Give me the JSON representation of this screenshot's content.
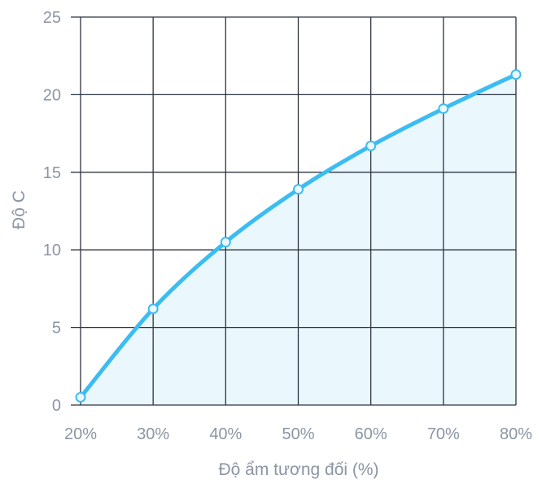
{
  "chart_data": {
    "type": "line",
    "title": "",
    "xlabel": "Độ ẩm tương đối (%)",
    "ylabel": "Độ C",
    "x": [
      20,
      30,
      40,
      50,
      60,
      70,
      80
    ],
    "x_tick_labels": [
      "20%",
      "30%",
      "40%",
      "50%",
      "60%",
      "70%",
      "80%"
    ],
    "xlim": [
      20,
      80
    ],
    "y_ticks": [
      0,
      5,
      10,
      15,
      20,
      25
    ],
    "y_tick_labels": [
      "0",
      "5",
      "10",
      "15",
      "20",
      "25"
    ],
    "ylim": [
      0,
      25
    ],
    "series": [
      {
        "values": [
          0.5,
          6.2,
          10.5,
          13.9,
          16.7,
          19.1,
          21.3
        ]
      }
    ],
    "grid": true,
    "area_fill": true,
    "colors": {
      "line": "#3bbcf2",
      "area": "#eaf7fd",
      "grid": "#2b3441",
      "tick_text": "#8b95a5"
    }
  }
}
